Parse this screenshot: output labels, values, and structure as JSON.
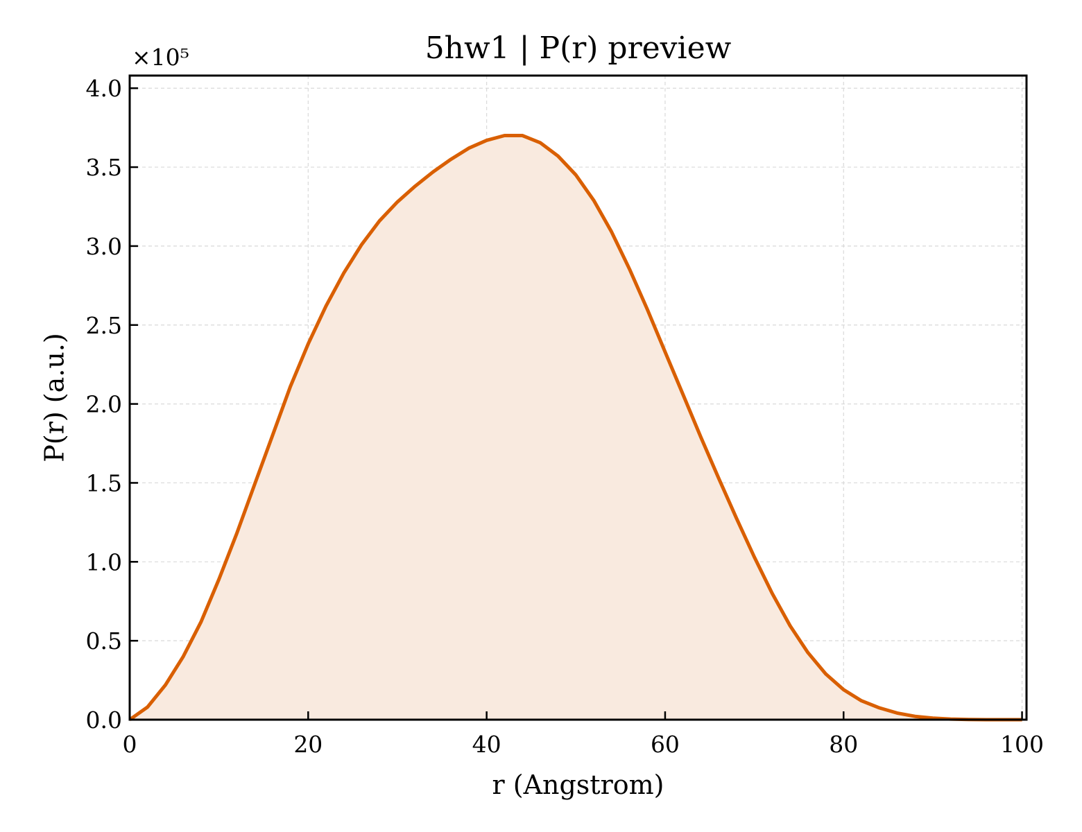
{
  "chart_data": {
    "type": "area",
    "title": "5hw1 | P(r) preview",
    "xlabel": "r (Angstrom)",
    "ylabel": "P(r) (a.u.)",
    "y_offset_label": "×10⁵",
    "xlim": [
      0,
      100.5
    ],
    "ylim": [
      0,
      4.08
    ],
    "xticks": [
      0,
      20,
      40,
      60,
      80,
      100
    ],
    "xtick_labels": [
      "0",
      "20",
      "40",
      "60",
      "80",
      "100"
    ],
    "yticks": [
      0.0,
      0.5,
      1.0,
      1.5,
      2.0,
      2.5,
      3.0,
      3.5,
      4.0
    ],
    "ytick_labels": [
      "0.0",
      "0.5",
      "1.0",
      "1.5",
      "2.0",
      "2.5",
      "3.0",
      "3.5",
      "4.0"
    ],
    "grid": true,
    "colors": {
      "line": "#d95f02",
      "fill": "#f9eadf",
      "grid": "#d9d9d9"
    },
    "series": [
      {
        "x": [
          0,
          2,
          4,
          6,
          8,
          10,
          12,
          14,
          16,
          18,
          20,
          22,
          24,
          26,
          28,
          30,
          32,
          34,
          36,
          38,
          40,
          42,
          44,
          46,
          48,
          50,
          52,
          54,
          56,
          58,
          60,
          62,
          64,
          66,
          68,
          70,
          72,
          74,
          76,
          78,
          80,
          82,
          84,
          86,
          88,
          90,
          92,
          94,
          96,
          98,
          100
        ],
        "y": [
          0.0,
          0.08,
          0.22,
          0.4,
          0.62,
          0.89,
          1.18,
          1.49,
          1.8,
          2.11,
          2.38,
          2.62,
          2.83,
          3.01,
          3.16,
          3.28,
          3.38,
          3.47,
          3.55,
          3.62,
          3.67,
          3.7,
          3.7,
          3.655,
          3.57,
          3.45,
          3.29,
          3.09,
          2.855,
          2.6,
          2.33,
          2.06,
          1.79,
          1.53,
          1.275,
          1.03,
          0.8,
          0.595,
          0.425,
          0.29,
          0.19,
          0.12,
          0.075,
          0.042,
          0.021,
          0.01,
          0.004,
          0.001,
          0.0,
          0.0,
          0.0
        ]
      }
    ]
  }
}
